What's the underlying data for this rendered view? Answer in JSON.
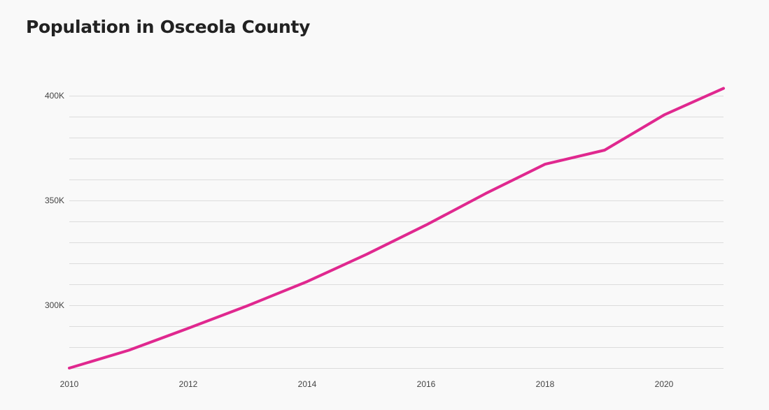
{
  "title": "Population in Osceola County",
  "colors": {
    "series": "#e0288f",
    "grid": "#dcdcdc"
  },
  "chart_data": {
    "type": "line",
    "title": "Population in Osceola County",
    "xlabel": "",
    "ylabel": "",
    "x": [
      2010,
      2011,
      2012,
      2013,
      2014,
      2015,
      2016,
      2017,
      2018,
      2019,
      2020,
      2021
    ],
    "series": [
      {
        "values": [
          270000,
          278500,
          289000,
          299800,
          311300,
          324300,
          338300,
          353300,
          367300,
          374000,
          390800,
          403500
        ]
      }
    ],
    "xlim": [
      2010,
      2021
    ],
    "ylim": [
      270000,
      400000
    ],
    "x_ticks": [
      2010,
      2012,
      2014,
      2016,
      2018,
      2020
    ],
    "x_tick_labels": [
      "2010",
      "2012",
      "2014",
      "2016",
      "2018",
      "2020"
    ],
    "y_ticks": [
      300000,
      350000,
      400000
    ],
    "y_tick_labels": [
      "300K",
      "350K",
      "400K"
    ],
    "y_grid_step": 10000,
    "grid": true,
    "legend": "none"
  }
}
